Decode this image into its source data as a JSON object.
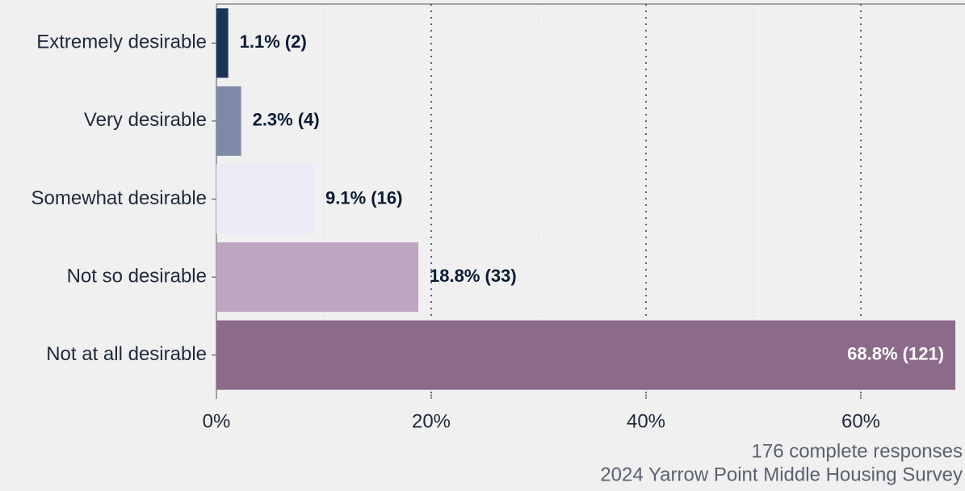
{
  "chart_data": {
    "type": "bar",
    "orientation": "horizontal",
    "categories": [
      "Extremely desirable",
      "Very desirable",
      "Somewhat desirable",
      "Not so desirable",
      "Not at all desirable"
    ],
    "values": [
      1.1,
      2.3,
      9.1,
      18.8,
      68.8
    ],
    "value_labels": [
      "1.1% (2)",
      "2.3% (4)",
      "9.1% (16)",
      "18.8% (33)",
      "68.8% (121)"
    ],
    "colors": [
      "#1b3358",
      "#7f89a8",
      "#ebeaf7",
      "#bfa5bf",
      "#8c6a8a"
    ],
    "xlim": [
      0,
      70
    ],
    "xticks": [
      {
        "value": 0,
        "label": "0%"
      },
      {
        "value": 20,
        "label": "20%"
      },
      {
        "value": 40,
        "label": "40%"
      },
      {
        "value": 60,
        "label": "60%"
      }
    ],
    "xminorticks": [
      10,
      30,
      50
    ],
    "grid": true,
    "caption": [
      "176 complete responses",
      "2024 Yarrow Point Middle Housing Survey"
    ]
  }
}
